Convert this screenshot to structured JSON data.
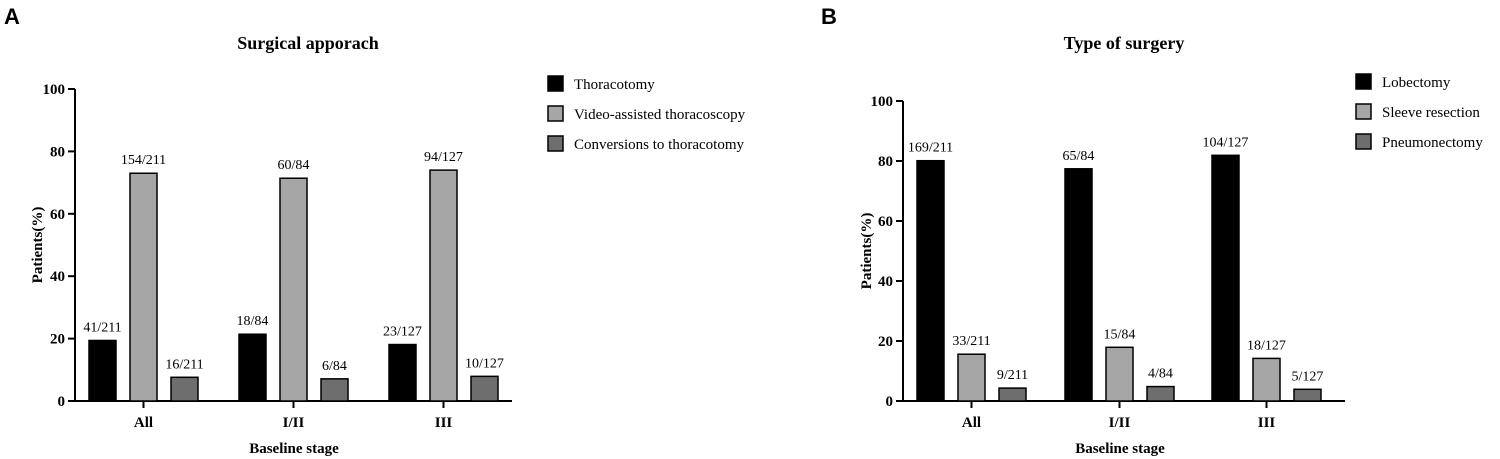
{
  "chart_data": [
    {
      "type": "bar",
      "panel": "A",
      "title": "Surgical apporach",
      "xlabel": "Baseline stage",
      "ylabel": "Patients(%)",
      "ylim": [
        0,
        100
      ],
      "yticks": [
        "0",
        "20",
        "40",
        "60",
        "80",
        "100"
      ],
      "categories": [
        "All",
        "I/II",
        "III"
      ],
      "legend_position": "right",
      "series": [
        {
          "name": "Thoracotomy",
          "color": "#000000",
          "values": [
            19.4,
            21.4,
            18.1
          ],
          "labels": [
            "41/211",
            "18/84",
            "23/127"
          ]
        },
        {
          "name": "Video-assisted thoracoscopy",
          "color": "#a6a6a6",
          "values": [
            73.0,
            71.4,
            74.0
          ],
          "labels": [
            "154/211",
            "60/84",
            "94/127"
          ]
        },
        {
          "name": "Conversions to thoracotomy",
          "color": "#6e6e6e",
          "values": [
            7.6,
            7.1,
            7.9
          ],
          "labels": [
            "16/211",
            "6/84",
            "10/127"
          ]
        }
      ]
    },
    {
      "type": "bar",
      "panel": "B",
      "title": "Type of surgery",
      "xlabel": "Baseline stage",
      "ylabel": "Patients(%)",
      "ylim": [
        0,
        100
      ],
      "yticks": [
        "0",
        "20",
        "40",
        "60",
        "80",
        "100"
      ],
      "categories": [
        "All",
        "I/II",
        "III"
      ],
      "legend_position": "right",
      "series": [
        {
          "name": "Lobectomy",
          "color": "#000000",
          "values": [
            80.1,
            77.4,
            81.9
          ],
          "labels": [
            "169/211",
            "65/84",
            "104/127"
          ]
        },
        {
          "name": "Sleeve resection",
          "color": "#a6a6a6",
          "values": [
            15.6,
            17.9,
            14.2
          ],
          "labels": [
            "33/211",
            "15/84",
            "18/127"
          ]
        },
        {
          "name": "Pneumonectomy",
          "color": "#6e6e6e",
          "values": [
            4.3,
            4.8,
            3.9
          ],
          "labels": [
            "9/211",
            "4/84",
            "5/127"
          ]
        }
      ]
    }
  ]
}
